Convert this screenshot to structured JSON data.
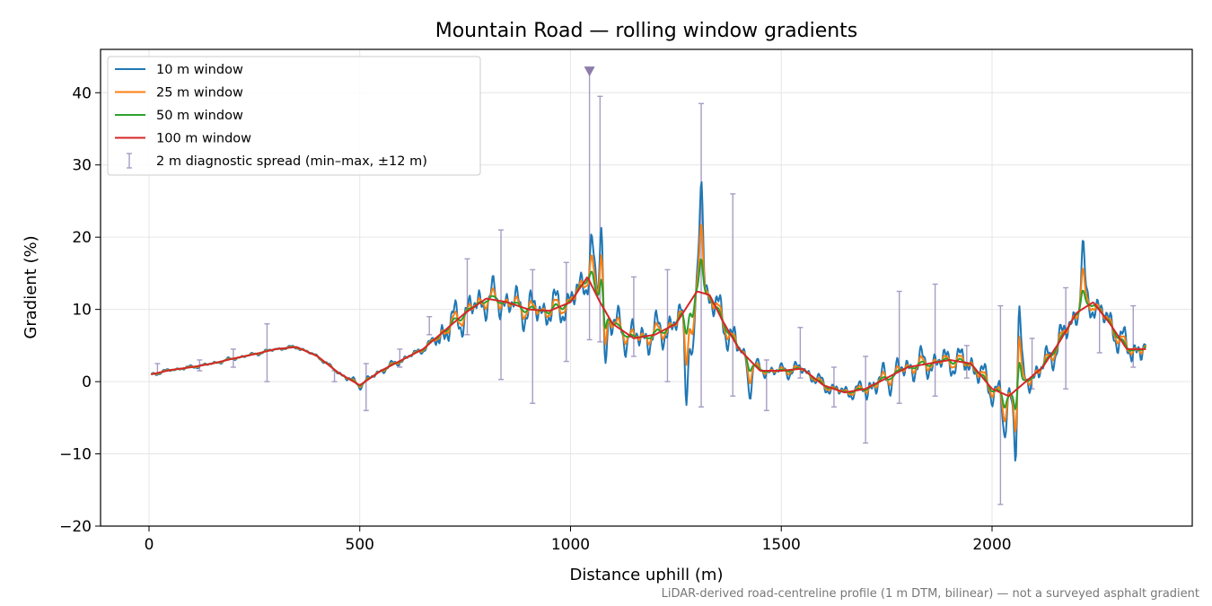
{
  "chart_data": {
    "type": "line",
    "title": "Mountain Road — rolling window gradients",
    "xlabel": "Distance uphill (m)",
    "ylabel": "Gradient (%)",
    "footnote": "LiDAR-derived road-centreline profile (1 m DTM, bilinear) — not a surveyed asphalt gradient",
    "xlim": [
      -115,
      2475
    ],
    "ylim": [
      -20,
      46
    ],
    "x_ticks": [
      0,
      500,
      1000,
      1500,
      2000
    ],
    "y_ticks": [
      -20,
      -10,
      0,
      10,
      20,
      30,
      40
    ],
    "x_tick_labels": [
      "0",
      "500",
      "1000",
      "1500",
      "2000"
    ],
    "y_tick_labels": [
      "−20",
      "−10",
      "0",
      "10",
      "20",
      "30",
      "40"
    ],
    "grid": true,
    "legend_position": "top-left",
    "legend": [
      "10 m window",
      "25 m window",
      "50 m window",
      "100 m window",
      "2 m diagnostic spread (min–max, ±12 m)"
    ],
    "marker": {
      "x": 1045,
      "y": 43,
      "shape": "triangle-down",
      "color": "#8c7bab"
    },
    "series": [
      {
        "name": "10 m window",
        "color": "#1f77b4",
        "noise": 1.0
      },
      {
        "name": "25 m window",
        "color": "#ff7f0e",
        "noise": 0.55
      },
      {
        "name": "50 m window",
        "color": "#2ca02c",
        "noise": 0.28
      },
      {
        "name": "100 m window",
        "color": "#d62728",
        "noise": 0.0
      }
    ],
    "trend": [
      [
        5,
        1.0
      ],
      [
        50,
        1.6
      ],
      [
        100,
        2.0
      ],
      [
        150,
        2.5
      ],
      [
        200,
        3.2
      ],
      [
        250,
        3.8
      ],
      [
        300,
        4.5
      ],
      [
        350,
        4.8
      ],
      [
        400,
        3.5
      ],
      [
        450,
        1.2
      ],
      [
        500,
        -0.5
      ],
      [
        550,
        1.5
      ],
      [
        600,
        3.0
      ],
      [
        650,
        4.5
      ],
      [
        700,
        7.0
      ],
      [
        750,
        9.5
      ],
      [
        800,
        11.5
      ],
      [
        850,
        11.0
      ],
      [
        900,
        10.0
      ],
      [
        950,
        9.8
      ],
      [
        1000,
        11.0
      ],
      [
        1040,
        14.5
      ],
      [
        1070,
        11.0
      ],
      [
        1100,
        8.0
      ],
      [
        1150,
        6.0
      ],
      [
        1200,
        6.5
      ],
      [
        1250,
        8.0
      ],
      [
        1300,
        12.5
      ],
      [
        1330,
        12.0
      ],
      [
        1360,
        8.5
      ],
      [
        1400,
        4.5
      ],
      [
        1450,
        1.5
      ],
      [
        1500,
        1.5
      ],
      [
        1550,
        1.8
      ],
      [
        1600,
        -0.5
      ],
      [
        1650,
        -1.5
      ],
      [
        1700,
        -1.0
      ],
      [
        1750,
        0.5
      ],
      [
        1800,
        2.0
      ],
      [
        1850,
        2.5
      ],
      [
        1900,
        3.0
      ],
      [
        1950,
        2.5
      ],
      [
        2000,
        -1.0
      ],
      [
        2040,
        -2.0
      ],
      [
        2080,
        0.0
      ],
      [
        2120,
        2.0
      ],
      [
        2160,
        5.5
      ],
      [
        2200,
        9.5
      ],
      [
        2240,
        11.0
      ],
      [
        2280,
        8.0
      ],
      [
        2320,
        4.5
      ],
      [
        2360,
        4.5
      ]
    ],
    "spikes": [
      [
        1075,
        28
      ],
      [
        1080,
        -3.5
      ],
      [
        1310,
        28.5
      ],
      [
        1275,
        -0.5
      ],
      [
        2063,
        15
      ],
      [
        2058,
        -14
      ],
      [
        2215,
        17.8
      ],
      [
        1050,
        19
      ],
      [
        1290,
        2.5
      ],
      [
        1425,
        -1.5
      ],
      [
        2030,
        -8
      ]
    ],
    "error_bars": [
      {
        "x": 20,
        "ymin": 1.0,
        "ymax": 2.5
      },
      {
        "x": 120,
        "ymin": 1.5,
        "ymax": 3.0
      },
      {
        "x": 200,
        "ymin": 2.0,
        "ymax": 4.5
      },
      {
        "x": 280,
        "ymin": 0.0,
        "ymax": 8.0
      },
      {
        "x": 440,
        "ymin": 0.0,
        "ymax": 1.5
      },
      {
        "x": 515,
        "ymin": -4.0,
        "ymax": 2.5
      },
      {
        "x": 595,
        "ymin": 2.0,
        "ymax": 4.5
      },
      {
        "x": 665,
        "ymin": 6.5,
        "ymax": 9.0
      },
      {
        "x": 755,
        "ymin": 6.5,
        "ymax": 17.0
      },
      {
        "x": 835,
        "ymin": 0.3,
        "ymax": 21.0
      },
      {
        "x": 910,
        "ymin": -3.0,
        "ymax": 15.5
      },
      {
        "x": 990,
        "ymin": 2.8,
        "ymax": 16.5
      },
      {
        "x": 1045,
        "ymin": 5.8,
        "ymax": 43.0
      },
      {
        "x": 1070,
        "ymin": 5.5,
        "ymax": 39.5
      },
      {
        "x": 1150,
        "ymin": 3.5,
        "ymax": 14.5
      },
      {
        "x": 1230,
        "ymin": 0.0,
        "ymax": 15.5
      },
      {
        "x": 1310,
        "ymin": -3.5,
        "ymax": 38.5
      },
      {
        "x": 1385,
        "ymin": -2.0,
        "ymax": 26.0
      },
      {
        "x": 1465,
        "ymin": -4.0,
        "ymax": 3.0
      },
      {
        "x": 1545,
        "ymin": 0.5,
        "ymax": 7.5
      },
      {
        "x": 1625,
        "ymin": -3.5,
        "ymax": 2.0
      },
      {
        "x": 1700,
        "ymin": -8.5,
        "ymax": 3.5
      },
      {
        "x": 1780,
        "ymin": -3.0,
        "ymax": 12.5
      },
      {
        "x": 1865,
        "ymin": -2.0,
        "ymax": 13.5
      },
      {
        "x": 1940,
        "ymin": 0.5,
        "ymax": 5.0
      },
      {
        "x": 2020,
        "ymin": -17.0,
        "ymax": 10.5
      },
      {
        "x": 2095,
        "ymin": -1.0,
        "ymax": 6.0
      },
      {
        "x": 2175,
        "ymin": -1.0,
        "ymax": 13.0
      },
      {
        "x": 2255,
        "ymin": 4.0,
        "ymax": 10.0
      },
      {
        "x": 2335,
        "ymin": 2.0,
        "ymax": 10.5
      }
    ]
  }
}
